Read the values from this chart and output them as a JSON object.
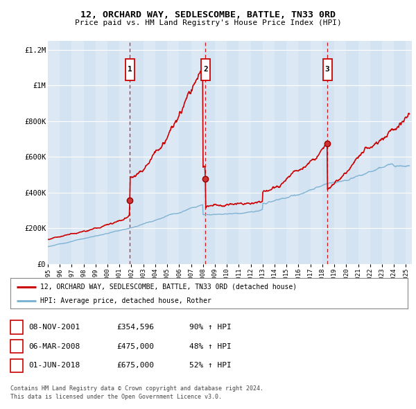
{
  "title": "12, ORCHARD WAY, SEDLESCOMBE, BATTLE, TN33 0RD",
  "subtitle": "Price paid vs. HM Land Registry's House Price Index (HPI)",
  "sale_times": [
    2001.875,
    2008.208,
    2018.417
  ],
  "sale_prices": [
    354596,
    475000,
    675000
  ],
  "sale_labels": [
    "1",
    "2",
    "3"
  ],
  "legend_entries": [
    "12, ORCHARD WAY, SEDLESCOMBE, BATTLE, TN33 0RD (detached house)",
    "HPI: Average price, detached house, Rother"
  ],
  "table_rows": [
    [
      "1",
      "08-NOV-2001",
      "£354,596",
      "90% ↑ HPI"
    ],
    [
      "2",
      "06-MAR-2008",
      "£475,000",
      "48% ↑ HPI"
    ],
    [
      "3",
      "01-JUN-2018",
      "£675,000",
      "52% ↑ HPI"
    ]
  ],
  "footnote1": "Contains HM Land Registry data © Crown copyright and database right 2024.",
  "footnote2": "This data is licensed under the Open Government Licence v3.0.",
  "hpi_color": "#7fb3d3",
  "price_color": "#cc0000",
  "vline_color": "#cc0000",
  "background_color": "#dce9f5",
  "ylim_max": 1200000,
  "xlim_start": 1995.0,
  "xlim_end": 2025.5,
  "yticks": [
    0,
    200000,
    400000,
    600000,
    800000,
    1000000,
    1200000
  ],
  "ytick_labels": [
    "£0",
    "£200K",
    "£400K",
    "£600K",
    "£800K",
    "£1M",
    "£1.2M"
  ]
}
